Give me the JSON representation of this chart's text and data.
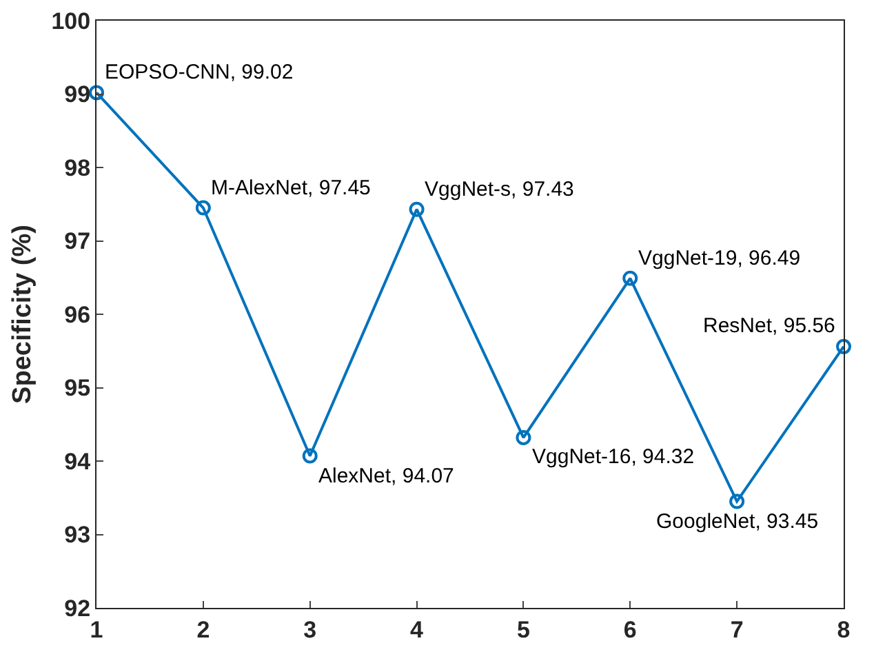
{
  "chart_data": {
    "type": "line",
    "ylabel": "Specificity (%)",
    "x": [
      1,
      2,
      3,
      4,
      5,
      6,
      7,
      8
    ],
    "values": [
      99.02,
      97.45,
      94.07,
      97.43,
      94.32,
      96.49,
      93.45,
      95.56
    ],
    "color": "#0072bd",
    "marker": "circle",
    "line_style": "solid",
    "grid": false,
    "legend": false,
    "xlim": [
      1,
      8
    ],
    "xticks": [
      1,
      2,
      3,
      4,
      5,
      6,
      7,
      8
    ],
    "ylim": [
      92,
      100
    ],
    "yticks": [
      92,
      93,
      94,
      95,
      96,
      97,
      98,
      99,
      100
    ],
    "annotations": [
      {
        "text": "EOPSO-CNN, 99.02",
        "x": 1,
        "y": 99.02
      },
      {
        "text": "M-AlexNet, 97.45",
        "x": 2,
        "y": 97.45
      },
      {
        "text": "AlexNet, 94.07",
        "x": 3,
        "y": 94.07
      },
      {
        "text": "VggNet-s, 97.43",
        "x": 4,
        "y": 97.43
      },
      {
        "text": "VggNet-16, 94.32",
        "x": 5,
        "y": 94.32
      },
      {
        "text": "VggNet-19, 96.49",
        "x": 6,
        "y": 96.49
      },
      {
        "text": "GoogleNet, 93.45",
        "x": 7,
        "y": 93.45
      },
      {
        "text": "ResNet, 95.56",
        "x": 8,
        "y": 95.56
      }
    ]
  }
}
